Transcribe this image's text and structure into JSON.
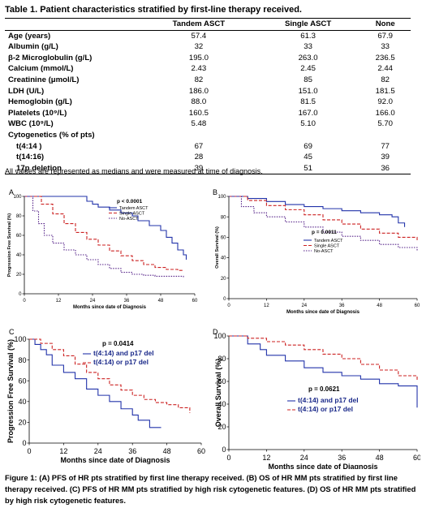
{
  "table": {
    "title": "Table 1. Patient characteristics stratified by first-line therapy received.",
    "columns": [
      "Tandem ASCT",
      "Single ASCT",
      "None"
    ],
    "rows": [
      {
        "label": "Age (years)",
        "values": [
          "57.4",
          "61.3",
          "67.9"
        ]
      },
      {
        "label": "Albumin (g/L)",
        "values": [
          "32",
          "33",
          "33"
        ]
      },
      {
        "label": "β-2 Microglobulin (g/L)",
        "values": [
          "195.0",
          "263.0",
          "236.5"
        ]
      },
      {
        "label": "Calcium (mmol/L)",
        "values": [
          "2.43",
          "2.45",
          "2.44"
        ]
      },
      {
        "label": "Creatinine (μmol/L)",
        "values": [
          "82",
          "85",
          "82"
        ]
      },
      {
        "label": "LDH (U/L)",
        "values": [
          "186.0",
          "151.0",
          "181.5"
        ]
      },
      {
        "label": "Hemoglobin (g/L)",
        "values": [
          "88.0",
          "81.5",
          "92.0"
        ]
      },
      {
        "label": "Platelets (10⁹/L)",
        "values": [
          "160.5",
          "167.0",
          "166.0"
        ]
      },
      {
        "label": "WBC (10⁹/L)",
        "values": [
          "5.48",
          "5.10",
          "5.70"
        ]
      }
    ],
    "cyto_header": "Cytogenetics (% of pts)",
    "cyto_rows": [
      {
        "label": "t(4:14 )",
        "values": [
          "67",
          "69",
          "77"
        ]
      },
      {
        "label": "t(14:16)",
        "values": [
          "28",
          "45",
          "39"
        ]
      },
      {
        "label": "17p deletion",
        "values": [
          "39",
          "51",
          "36"
        ]
      }
    ],
    "note": "All values are represented as medians and were measured at time of diagnosis."
  },
  "chart_data": [
    {
      "panel": "A",
      "type": "line",
      "xlabel": "Months since date of Diagnosis",
      "ylabel": "Progression Free Survival (%)",
      "xlim": [
        0,
        60
      ],
      "ylim": [
        0,
        100
      ],
      "xticks": [
        0,
        12,
        24,
        36,
        48,
        60
      ],
      "yticks": [
        0,
        20,
        40,
        60,
        80,
        100
      ],
      "pvalue": "p  <  0.0001",
      "series": [
        {
          "name": "Tandem ASCT",
          "color": "#2233aa",
          "dash": "",
          "x": [
            0,
            20,
            22,
            24,
            26,
            30,
            34,
            38,
            40,
            44,
            48,
            50,
            52,
            54,
            56,
            57
          ],
          "y": [
            100,
            100,
            95,
            92,
            89,
            86,
            83,
            80,
            75,
            70,
            65,
            58,
            52,
            45,
            40,
            35
          ]
        },
        {
          "name": "Single ASCT",
          "color": "#cc2222",
          "dash": "4,2",
          "x": [
            0,
            6,
            10,
            14,
            18,
            22,
            26,
            30,
            34,
            38,
            42,
            46,
            50,
            54,
            56
          ],
          "y": [
            100,
            92,
            82,
            72,
            63,
            56,
            50,
            44,
            39,
            34,
            30,
            27,
            25,
            24,
            24
          ]
        },
        {
          "name": "No-ASCT",
          "color": "#552288",
          "dash": "1.5,1.5",
          "x": [
            0,
            3,
            5,
            7,
            10,
            14,
            18,
            22,
            26,
            30,
            34,
            38,
            42,
            46,
            50,
            56
          ],
          "y": [
            100,
            85,
            72,
            60,
            52,
            45,
            40,
            35,
            30,
            26,
            22,
            20,
            19,
            18,
            18,
            17
          ]
        }
      ]
    },
    {
      "panel": "B",
      "type": "line",
      "xlabel": "Months since date of Diagnosis",
      "ylabel": "Overall Survival (%)",
      "xlim": [
        0,
        60
      ],
      "ylim": [
        0,
        100
      ],
      "xticks": [
        0,
        12,
        24,
        36,
        48,
        60
      ],
      "yticks": [
        0,
        20,
        40,
        60,
        80,
        100
      ],
      "pvalue": "p  =  0.0011",
      "series": [
        {
          "name": "Tandem ASCT",
          "color": "#2233aa",
          "dash": "",
          "x": [
            0,
            6,
            12,
            18,
            24,
            30,
            36,
            42,
            48,
            52,
            54,
            56
          ],
          "y": [
            100,
            98,
            95,
            92,
            90,
            88,
            86,
            84,
            82,
            80,
            74,
            70
          ]
        },
        {
          "name": "Single ASCT",
          "color": "#cc2222",
          "dash": "4,2",
          "x": [
            0,
            6,
            12,
            18,
            24,
            30,
            36,
            42,
            48,
            54,
            60
          ],
          "y": [
            100,
            96,
            91,
            87,
            82,
            77,
            73,
            68,
            64,
            60,
            56
          ]
        },
        {
          "name": "No-ASCT",
          "color": "#552288",
          "dash": "1.5,1.5",
          "x": [
            0,
            4,
            8,
            12,
            18,
            24,
            30,
            36,
            42,
            48,
            54,
            60
          ],
          "y": [
            100,
            90,
            84,
            80,
            75,
            70,
            65,
            61,
            57,
            53,
            50,
            46
          ]
        }
      ]
    },
    {
      "panel": "C",
      "type": "line",
      "xlabel": "Months since date of Diagnosis",
      "ylabel": "Progression Free Survival  (%)",
      "xlim": [
        0,
        60
      ],
      "ylim": [
        0,
        100
      ],
      "xticks": [
        0,
        12,
        24,
        36,
        48,
        60
      ],
      "yticks": [
        0,
        20,
        40,
        60,
        80,
        100
      ],
      "pvalue": "p  =  0.0414",
      "series": [
        {
          "name": "t(4:14)  and  p17  del",
          "color": "#2233aa",
          "dash": "",
          "x": [
            0,
            2,
            4,
            6,
            8,
            12,
            16,
            20,
            24,
            28,
            32,
            36,
            38,
            42,
            46
          ],
          "y": [
            100,
            95,
            90,
            85,
            75,
            68,
            62,
            52,
            46,
            40,
            33,
            27,
            22,
            15,
            15
          ]
        },
        {
          "name": "t(4:14)  or   p17  del",
          "color": "#cc2222",
          "dash": "4,2",
          "x": [
            0,
            4,
            8,
            12,
            16,
            20,
            24,
            28,
            32,
            36,
            40,
            44,
            48,
            52,
            56
          ],
          "y": [
            100,
            96,
            90,
            84,
            76,
            68,
            62,
            56,
            51,
            46,
            42,
            39,
            37,
            34,
            29
          ]
        }
      ]
    },
    {
      "panel": "D",
      "type": "line",
      "xlabel": "Months since date of Diagnosis",
      "ylabel": "Overall Survival  (%)",
      "xlim": [
        0,
        60
      ],
      "ylim": [
        0,
        100
      ],
      "xticks": [
        0,
        12,
        24,
        36,
        48,
        60
      ],
      "yticks": [
        0,
        20,
        40,
        60,
        80,
        100
      ],
      "pvalue": "p  =  0.0621",
      "series": [
        {
          "name": "t(4:14)  and   p17  del",
          "color": "#2233aa",
          "dash": "",
          "x": [
            0,
            6,
            10,
            12,
            18,
            24,
            30,
            36,
            42,
            48,
            54,
            60
          ],
          "y": [
            100,
            93,
            88,
            83,
            78,
            72,
            68,
            65,
            62,
            58,
            56,
            37
          ]
        },
        {
          "name": "t(4:14)  or   p17  del",
          "color": "#cc2222",
          "dash": "4,2",
          "x": [
            0,
            6,
            12,
            18,
            24,
            30,
            36,
            42,
            48,
            54,
            60
          ],
          "y": [
            100,
            98,
            95,
            92,
            88,
            84,
            80,
            75,
            70,
            65,
            60
          ]
        }
      ]
    }
  ],
  "caption": "Figure 1: (A) PFS of HR pts stratified by first line therapy received. (B) OS of HR MM pts stratified by first line therapy received. (C) PFS of HR MM pts stratified by high risk cytogenetic features. (D) OS of HR MM pts stratified by high risk cytogenetic features."
}
